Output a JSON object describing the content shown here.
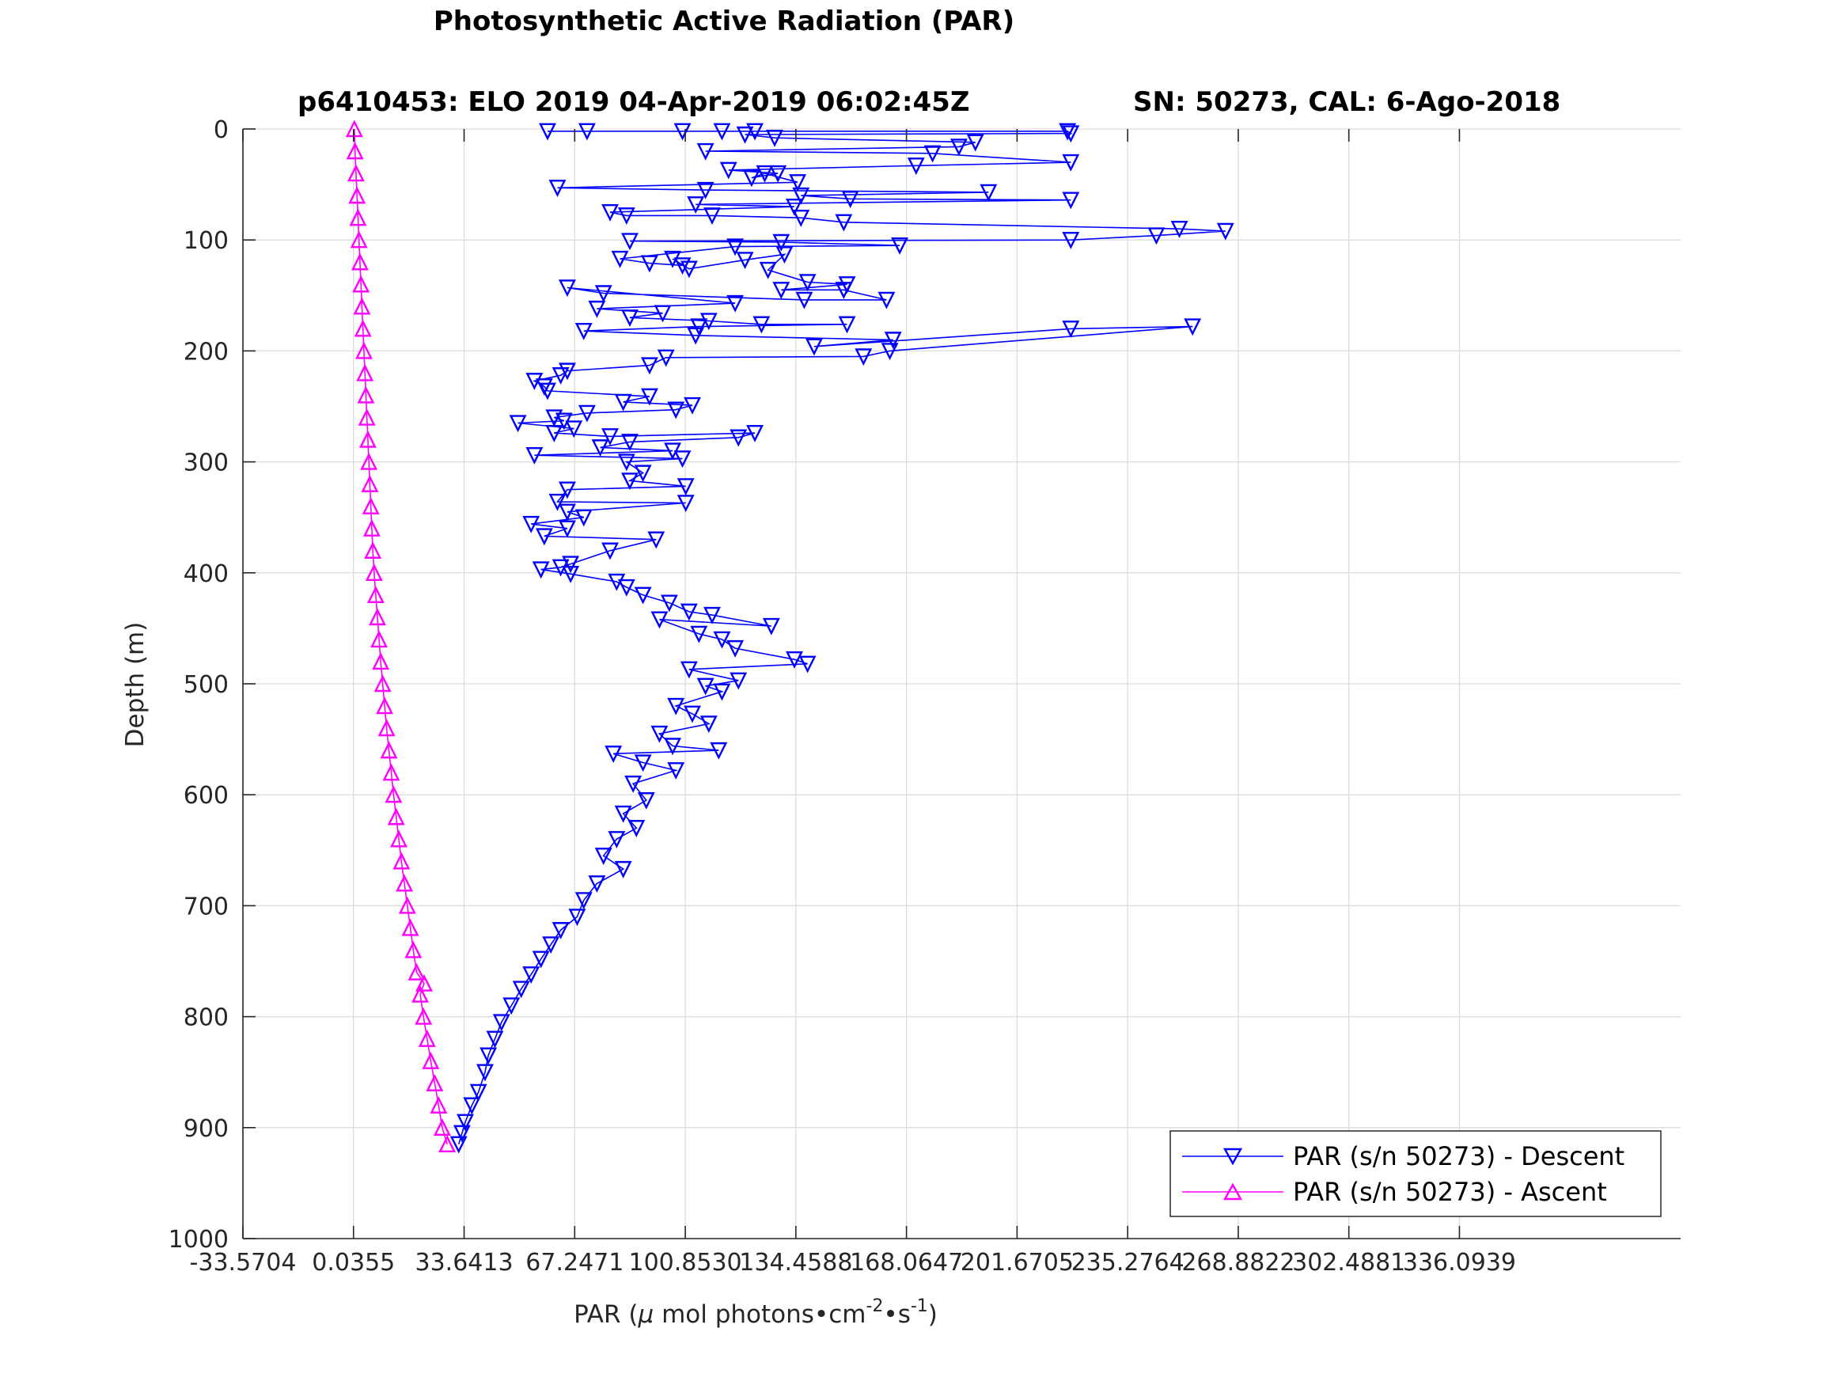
{
  "chart_data": {
    "type": "scatter",
    "title": "Photosynthetic Active Radiation (PAR)",
    "subtitle_left": "p6410453: ELO 2019 04-Apr-2019 06:02:45Z",
    "subtitle_right": "SN: 50273, CAL: 6-Ago-2018",
    "xlabel_prefix": "PAR (",
    "xlabel_mu": "μ",
    "xlabel_mid": " mol photons•cm",
    "xlabel_sup1": "-2",
    "xlabel_mid2": "•s",
    "xlabel_sup2": "-1",
    "xlabel_suffix": ")",
    "ylabel": "Depth (m)",
    "xlim": [
      -33.5704,
      336.0939
    ],
    "ylim": [
      0,
      1000
    ],
    "y_reversed": true,
    "grid": true,
    "legend_position": "bottom-right",
    "xticks": [
      -33.5704,
      0.0355,
      33.6413,
      67.2471,
      100.853,
      134.4588,
      168.0647,
      201.6705,
      235.2764,
      268.8822,
      302.4881,
      336.0939
    ],
    "xtick_labels": [
      "-33.5704",
      "0.0355",
      "33.6413",
      "67.2471",
      "100.8530",
      "134.4588",
      "168.0647",
      "201.6705",
      "235.2764",
      "268.8822",
      "302.4881",
      "336.0939"
    ],
    "yticks": [
      0,
      100,
      200,
      300,
      400,
      500,
      600,
      700,
      800,
      900,
      1000
    ],
    "ytick_labels": [
      "0",
      "100",
      "200",
      "300",
      "400",
      "500",
      "600",
      "700",
      "800",
      "900",
      "1000"
    ],
    "series": [
      {
        "name": "PAR (s/n 50273) - Descent",
        "color": "#0000ff",
        "marker": "triangle-down",
        "points": [
          [
            59,
            2
          ],
          [
            71,
            2
          ],
          [
            100,
            2
          ],
          [
            112,
            2
          ],
          [
            122,
            2
          ],
          [
            217,
            2
          ],
          [
            218,
            4
          ],
          [
            119,
            5
          ],
          [
            128,
            8
          ],
          [
            189,
            12
          ],
          [
            184,
            16
          ],
          [
            107,
            20
          ],
          [
            176,
            22
          ],
          [
            218,
            30
          ],
          [
            171,
            33
          ],
          [
            114,
            37
          ],
          [
            129,
            40
          ],
          [
            121,
            44
          ],
          [
            125,
            40
          ],
          [
            135,
            48
          ],
          [
            62,
            53
          ],
          [
            107,
            55
          ],
          [
            193,
            57
          ],
          [
            136,
            60
          ],
          [
            151,
            63
          ],
          [
            218,
            64
          ],
          [
            104,
            68
          ],
          [
            134,
            70
          ],
          [
            78,
            75
          ],
          [
            83,
            78
          ],
          [
            109,
            78
          ],
          [
            136,
            80
          ],
          [
            149,
            84
          ],
          [
            251,
            90
          ],
          [
            265,
            92
          ],
          [
            244,
            96
          ],
          [
            218,
            100
          ],
          [
            84,
            101
          ],
          [
            130,
            102
          ],
          [
            166,
            105
          ],
          [
            116,
            106
          ],
          [
            81,
            117
          ],
          [
            90,
            121
          ],
          [
            100,
            123
          ],
          [
            97,
            117
          ],
          [
            102,
            126
          ],
          [
            119,
            118
          ],
          [
            131,
            113
          ],
          [
            126,
            127
          ],
          [
            138,
            138
          ],
          [
            150,
            140
          ],
          [
            130,
            145
          ],
          [
            149,
            145
          ],
          [
            162,
            154
          ],
          [
            137,
            154
          ],
          [
            76,
            148
          ],
          [
            65,
            143
          ],
          [
            116,
            157
          ],
          [
            74,
            162
          ],
          [
            94,
            166
          ],
          [
            84,
            170
          ],
          [
            108,
            173
          ],
          [
            124,
            176
          ],
          [
            150,
            176
          ],
          [
            105,
            178
          ],
          [
            70,
            182
          ],
          [
            104,
            186
          ],
          [
            164,
            190
          ],
          [
            140,
            196
          ],
          [
            218,
            180
          ],
          [
            255,
            178
          ],
          [
            163,
            200
          ],
          [
            155,
            205
          ],
          [
            95,
            206
          ],
          [
            90,
            213
          ],
          [
            65,
            218
          ],
          [
            63,
            222
          ],
          [
            55,
            227
          ],
          [
            58,
            232
          ],
          [
            59,
            236
          ],
          [
            90,
            241
          ],
          [
            82,
            246
          ],
          [
            103,
            249
          ],
          [
            98,
            253
          ],
          [
            71,
            256
          ],
          [
            61,
            260
          ],
          [
            64,
            263
          ],
          [
            50,
            265
          ],
          [
            67,
            270
          ],
          [
            61,
            274
          ],
          [
            78,
            277
          ],
          [
            122,
            274
          ],
          [
            117,
            278
          ],
          [
            84,
            282
          ],
          [
            75,
            287
          ],
          [
            97,
            290
          ],
          [
            55,
            294
          ],
          [
            100,
            297
          ],
          [
            83,
            300
          ],
          [
            88,
            310
          ],
          [
            84,
            317
          ],
          [
            101,
            322
          ],
          [
            65,
            325
          ],
          [
            62,
            336
          ],
          [
            101,
            337
          ],
          [
            65,
            345
          ],
          [
            70,
            350
          ],
          [
            54,
            356
          ],
          [
            65,
            360
          ],
          [
            58,
            367
          ],
          [
            92,
            370
          ],
          [
            78,
            380
          ],
          [
            66,
            392
          ],
          [
            63,
            395
          ],
          [
            57,
            397
          ],
          [
            66,
            401
          ],
          [
            80,
            408
          ],
          [
            83,
            413
          ],
          [
            88,
            420
          ],
          [
            96,
            427
          ],
          [
            102,
            435
          ],
          [
            109,
            438
          ],
          [
            127,
            448
          ],
          [
            93,
            442
          ],
          [
            105,
            455
          ],
          [
            112,
            460
          ],
          [
            116,
            468
          ],
          [
            134,
            478
          ],
          [
            138,
            482
          ],
          [
            102,
            487
          ],
          [
            117,
            497
          ],
          [
            107,
            502
          ],
          [
            112,
            507
          ],
          [
            98,
            520
          ],
          [
            103,
            527
          ],
          [
            108,
            536
          ],
          [
            93,
            545
          ],
          [
            97,
            556
          ],
          [
            111,
            560
          ],
          [
            79,
            563
          ],
          [
            88,
            571
          ],
          [
            98,
            578
          ],
          [
            85,
            590
          ],
          [
            89,
            605
          ],
          [
            82,
            617
          ],
          [
            86,
            630
          ],
          [
            80,
            640
          ],
          [
            76,
            655
          ],
          [
            82,
            667
          ],
          [
            74,
            680
          ],
          [
            70,
            695
          ],
          [
            68,
            710
          ],
          [
            63,
            722
          ],
          [
            60,
            735
          ],
          [
            57,
            748
          ],
          [
            54,
            762
          ],
          [
            51,
            775
          ],
          [
            48,
            790
          ],
          [
            45,
            805
          ],
          [
            43,
            820
          ],
          [
            41,
            835
          ],
          [
            40,
            850
          ],
          [
            38,
            868
          ],
          [
            36,
            880
          ],
          [
            34,
            895
          ],
          [
            33,
            905
          ],
          [
            32,
            915
          ]
        ]
      },
      {
        "name": "PAR (s/n 50273) - Ascent",
        "color": "#ff00ff",
        "marker": "triangle-up",
        "points": [
          [
            0.3,
            0
          ],
          [
            0.5,
            20
          ],
          [
            0.8,
            40
          ],
          [
            1.1,
            60
          ],
          [
            1.4,
            80
          ],
          [
            1.7,
            100
          ],
          [
            2.0,
            120
          ],
          [
            2.3,
            140
          ],
          [
            2.6,
            160
          ],
          [
            2.9,
            180
          ],
          [
            3.2,
            200
          ],
          [
            3.5,
            220
          ],
          [
            3.8,
            240
          ],
          [
            4.1,
            260
          ],
          [
            4.4,
            280
          ],
          [
            4.7,
            300
          ],
          [
            5.0,
            320
          ],
          [
            5.3,
            340
          ],
          [
            5.6,
            360
          ],
          [
            5.9,
            380
          ],
          [
            6.3,
            400
          ],
          [
            6.8,
            420
          ],
          [
            7.3,
            440
          ],
          [
            7.8,
            460
          ],
          [
            8.3,
            480
          ],
          [
            8.9,
            500
          ],
          [
            9.5,
            520
          ],
          [
            10.1,
            540
          ],
          [
            10.8,
            560
          ],
          [
            11.5,
            580
          ],
          [
            12.2,
            600
          ],
          [
            13.0,
            620
          ],
          [
            13.8,
            640
          ],
          [
            14.6,
            660
          ],
          [
            15.5,
            680
          ],
          [
            16.4,
            700
          ],
          [
            17.3,
            720
          ],
          [
            18.2,
            740
          ],
          [
            19.2,
            760
          ],
          [
            21.5,
            770
          ],
          [
            20.3,
            780
          ],
          [
            21.3,
            800
          ],
          [
            22.4,
            820
          ],
          [
            23.5,
            840
          ],
          [
            24.7,
            860
          ],
          [
            25.9,
            880
          ],
          [
            27.0,
            900
          ],
          [
            28.5,
            915
          ]
        ]
      }
    ]
  }
}
